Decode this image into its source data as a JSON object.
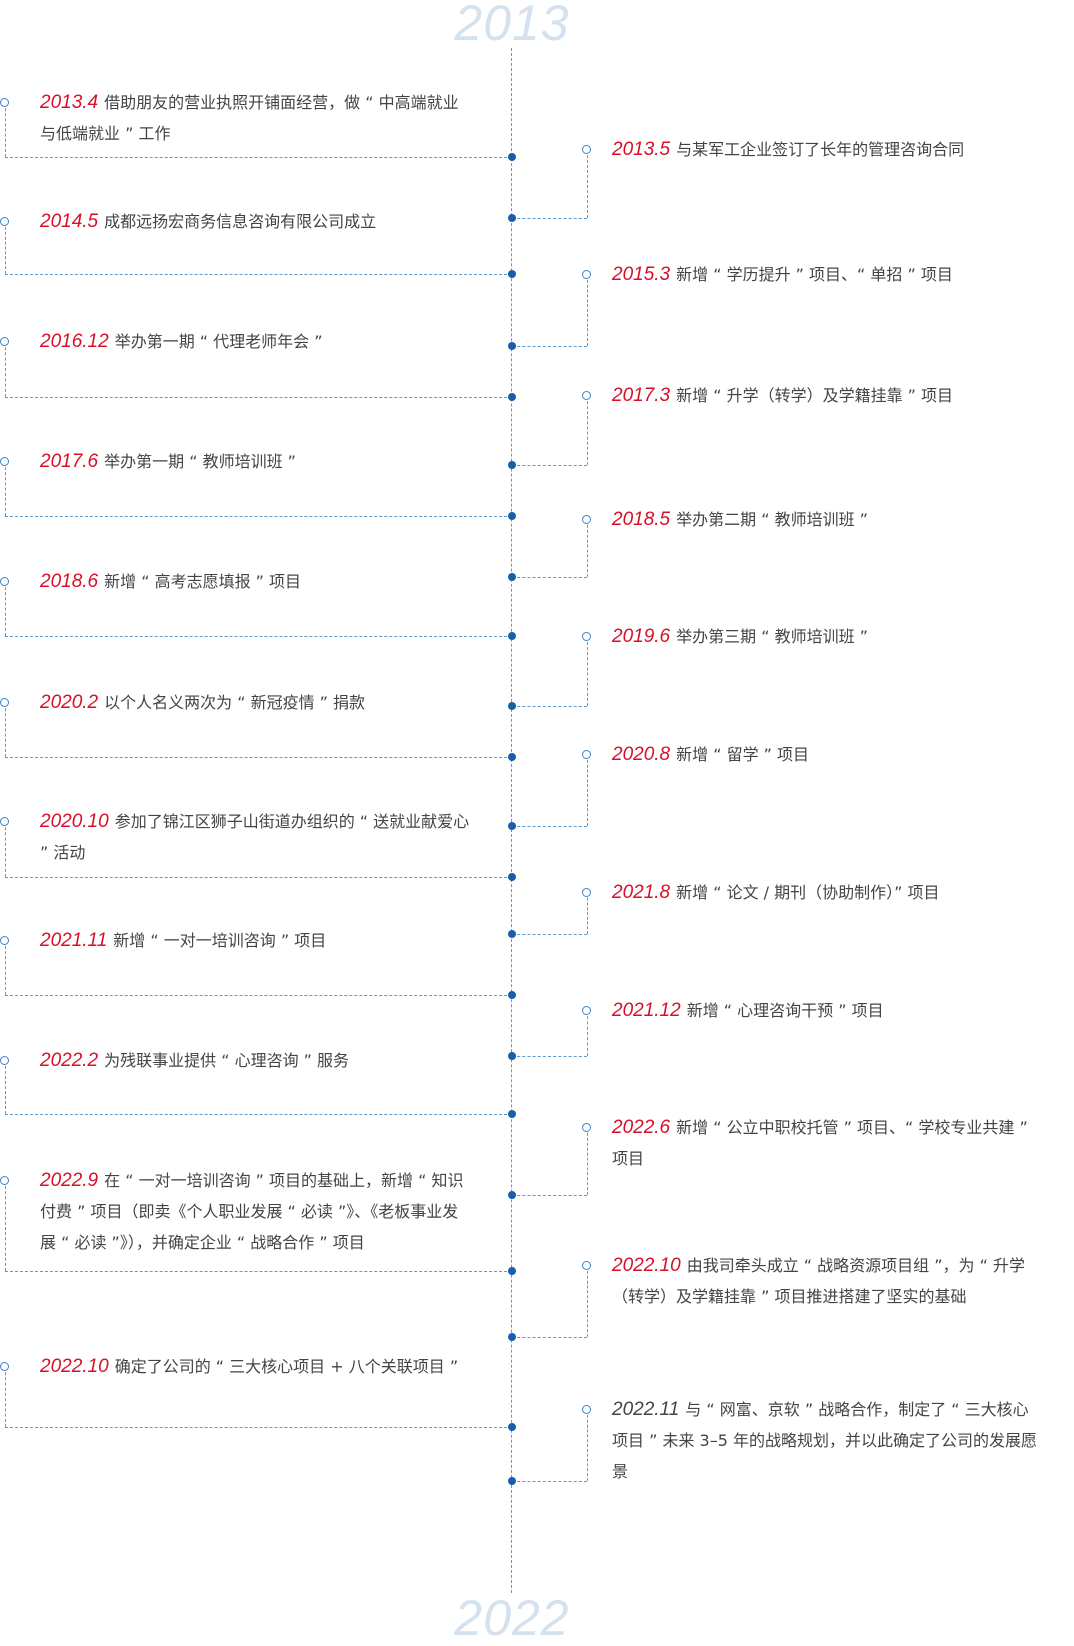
{
  "years": {
    "start": "2013",
    "end": "2022"
  },
  "colors": {
    "date": "#d7102a",
    "line": "#5b9bd0",
    "dot": "#1560a8",
    "year": "#d3e2ee",
    "text": "#444444"
  },
  "left_items": [
    {
      "date": "2013.4",
      "text": "借助朋友的营业执照开铺面经营，做 “ 中高端就业与低端就业 ” 工作"
    },
    {
      "date": "2014.5",
      "text": "成都远扬宏商务信息咨询有限公司成立"
    },
    {
      "date": "2016.12",
      "text": "举办第一期 “ 代理老师年会 ”"
    },
    {
      "date": "2017.6",
      "text": "举办第一期 “ 教师培训班 ”"
    },
    {
      "date": "2018.6",
      "text": "新增 “ 高考志愿填报 ” 项目"
    },
    {
      "date": "2020.2",
      "text": "以个人名义两次为 “ 新冠疫情 ” 捐款"
    },
    {
      "date": "2020.10",
      "text": "参加了锦江区狮子山街道办组织的 “ 送就业献爱心 ” 活动"
    },
    {
      "date": "2021.11",
      "text": "新增 “ 一对一培训咨询 ” 项目"
    },
    {
      "date": "2022.2",
      "text": "为残联事业提供 “ 心理咨询 ” 服务"
    },
    {
      "date": "2022.9",
      "text": "在 “ 一对一培训咨询 ” 项目的基础上，新增 “ 知识付费 ” 项目（即卖《个人职业发展 “ 必读 ”》、《老板事业发展 “ 必读 ”》），并确定企业 “ 战略合作 ” 项目"
    },
    {
      "date": "2022.10",
      "text": "确定了公司的 “ 三大核心项目 + 八个关联项目 ”"
    }
  ],
  "right_items": [
    {
      "date": "2013.5",
      "text": "与某军工企业签订了长年的管理咨询合同"
    },
    {
      "date": "2015.3",
      "text": "新增 “ 学历提升 ” 项目、“ 单招 ” 项目"
    },
    {
      "date": "2017.3",
      "text": "新增 “ 升学（转学）及学籍挂靠 ” 项目"
    },
    {
      "date": "2018.5",
      "text": "举办第二期 “ 教师培训班 ”"
    },
    {
      "date": "2019.6",
      "text": "举办第三期 “ 教师培训班 ”"
    },
    {
      "date": "2020.8",
      "text": "新增 “ 留学 ” 项目"
    },
    {
      "date": "2021.8",
      "text": "新增 “ 论文 / 期刊（协助制作）” 项目"
    },
    {
      "date": "2021.12",
      "text": "新增 “ 心理咨询干预 ” 项目"
    },
    {
      "date": "2022.6",
      "text": "新增 “ 公立中职校托管 ” 项目、“ 学校专业共建 ” 项目"
    },
    {
      "date": "2022.10",
      "text": "由我司牵头成立 “ 战略资源项目组 ”，为 “ 升学（转学）及学籍挂靠 ” 项目推进搭建了坚实的基础"
    },
    {
      "date": "2022.11",
      "text": "与 “ 网富、京软 ” 战略合作，制定了 “ 三大核心项目 ” 未来 3–5 年的战略规划，并以此确定了公司的发展愿景",
      "date_color": "#444444"
    }
  ]
}
